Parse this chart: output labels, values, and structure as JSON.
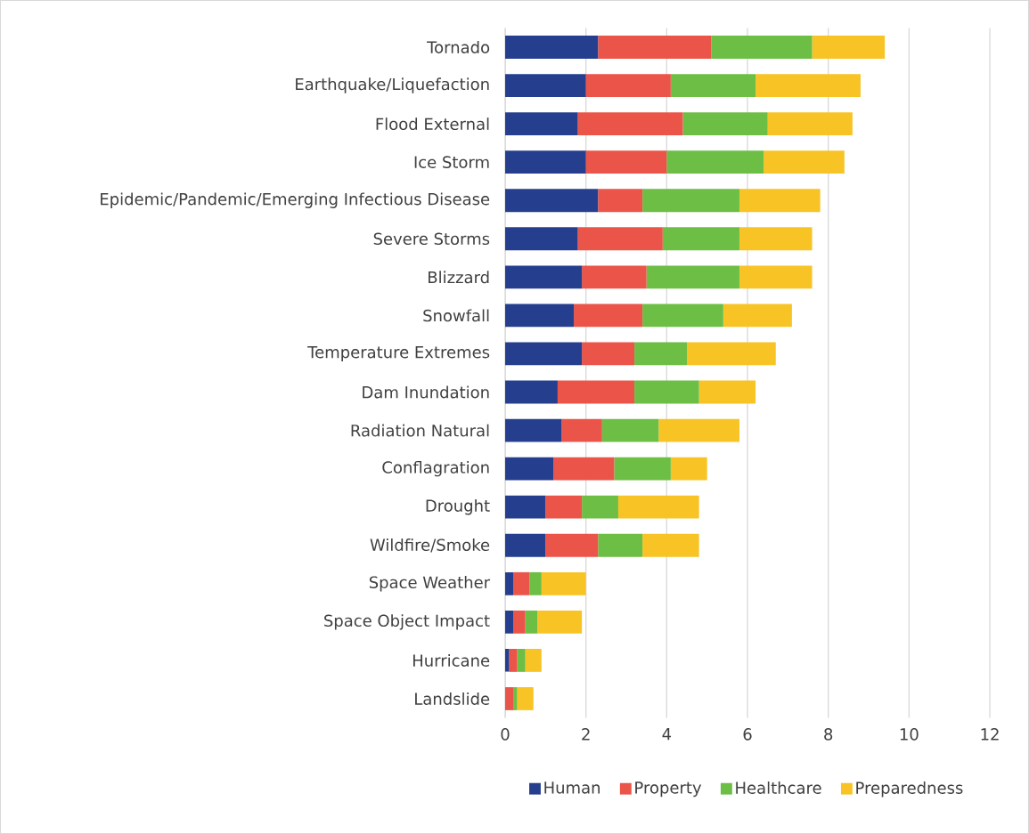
{
  "chart_data": {
    "type": "bar",
    "orientation": "horizontal",
    "stacked": true,
    "categories": [
      "Tornado",
      "Earthquake/Liquefaction",
      "Flood External",
      "Ice Storm",
      "Epidemic/Pandemic/Emerging Infectious Disease",
      "Severe Storms",
      "Blizzard",
      "Snowfall",
      "Temperature Extremes",
      "Dam Inundation",
      "Radiation Natural",
      "Conflagration",
      "Drought",
      "Wildfire/Smoke",
      "Space Weather",
      "Space Object Impact",
      "Hurricane",
      "Landslide"
    ],
    "series": [
      {
        "name": "Human",
        "color": "#253f8e",
        "values": [
          2.3,
          2.0,
          1.8,
          2.0,
          2.3,
          1.8,
          1.9,
          1.7,
          1.9,
          1.3,
          1.4,
          1.2,
          1.0,
          1.0,
          0.2,
          0.2,
          0.1,
          0.0
        ]
      },
      {
        "name": "Property",
        "color": "#eb5448",
        "values": [
          2.8,
          2.1,
          2.6,
          2.0,
          1.1,
          2.1,
          1.6,
          1.7,
          1.3,
          1.9,
          1.0,
          1.5,
          0.9,
          1.3,
          0.4,
          0.3,
          0.2,
          0.2
        ]
      },
      {
        "name": "Healthcare",
        "color": "#6dbe45",
        "values": [
          2.5,
          2.1,
          2.1,
          2.4,
          2.4,
          1.9,
          2.3,
          2.0,
          1.3,
          1.6,
          1.4,
          1.4,
          0.9,
          1.1,
          0.3,
          0.3,
          0.2,
          0.1
        ]
      },
      {
        "name": "Preparedness",
        "color": "#f8c325",
        "values": [
          1.8,
          2.6,
          2.1,
          2.0,
          2.0,
          1.8,
          1.8,
          1.7,
          2.2,
          1.4,
          2.0,
          0.9,
          2.0,
          1.4,
          1.1,
          1.1,
          0.4,
          0.4
        ]
      }
    ],
    "xlim": [
      0,
      12
    ],
    "xticks": [
      0,
      2,
      4,
      6,
      8,
      10,
      12
    ],
    "grid": "x",
    "legend": "bottom"
  }
}
